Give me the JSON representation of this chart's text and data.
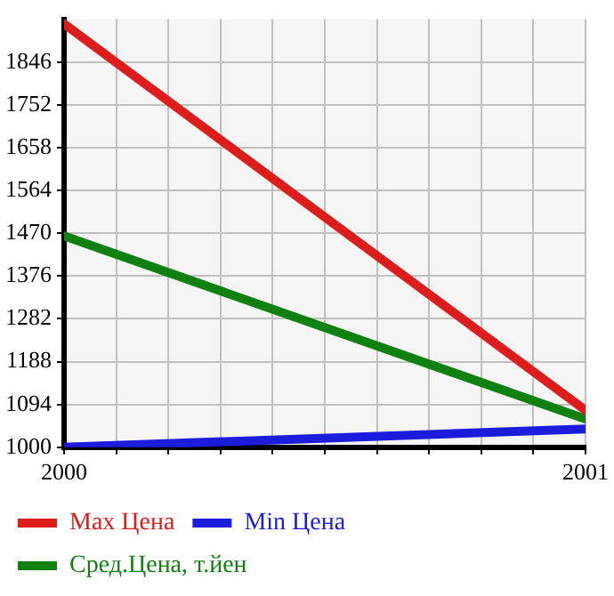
{
  "chart_data": {
    "type": "line",
    "x": [
      2000,
      2001
    ],
    "series": [
      {
        "name": "Max Цена",
        "color": "#dd1c1c",
        "values": [
          1930,
          1081
        ]
      },
      {
        "name": "Min Цена",
        "color": "#1c1cdd",
        "values": [
          1000,
          1040
        ]
      },
      {
        "name": "Сред.Цена, т.йен",
        "color": "#108010",
        "values": [
          1464,
          1062
        ]
      }
    ],
    "xlim": [
      2000,
      2001
    ],
    "xticks": [
      2000,
      {
        "value": 2000.1,
        "label": null
      },
      {
        "value": 2000.2,
        "label": null
      },
      {
        "value": 2000.3,
        "label": null
      },
      {
        "value": 2000.4,
        "label": null
      },
      {
        "value": 2000.5,
        "label": null
      },
      {
        "value": 2000.6,
        "label": null
      },
      {
        "value": 2000.7,
        "label": null
      },
      {
        "value": 2000.8,
        "label": null
      },
      {
        "value": 2000.9,
        "label": null
      },
      2001
    ],
    "ylim": [
      1000,
      1940
    ],
    "yticks": [
      1000,
      1094,
      1188,
      1282,
      1376,
      1470,
      1564,
      1658,
      1752,
      1846
    ],
    "grid": true,
    "legend": "bottom",
    "marker": "none",
    "line_style": "solid"
  }
}
